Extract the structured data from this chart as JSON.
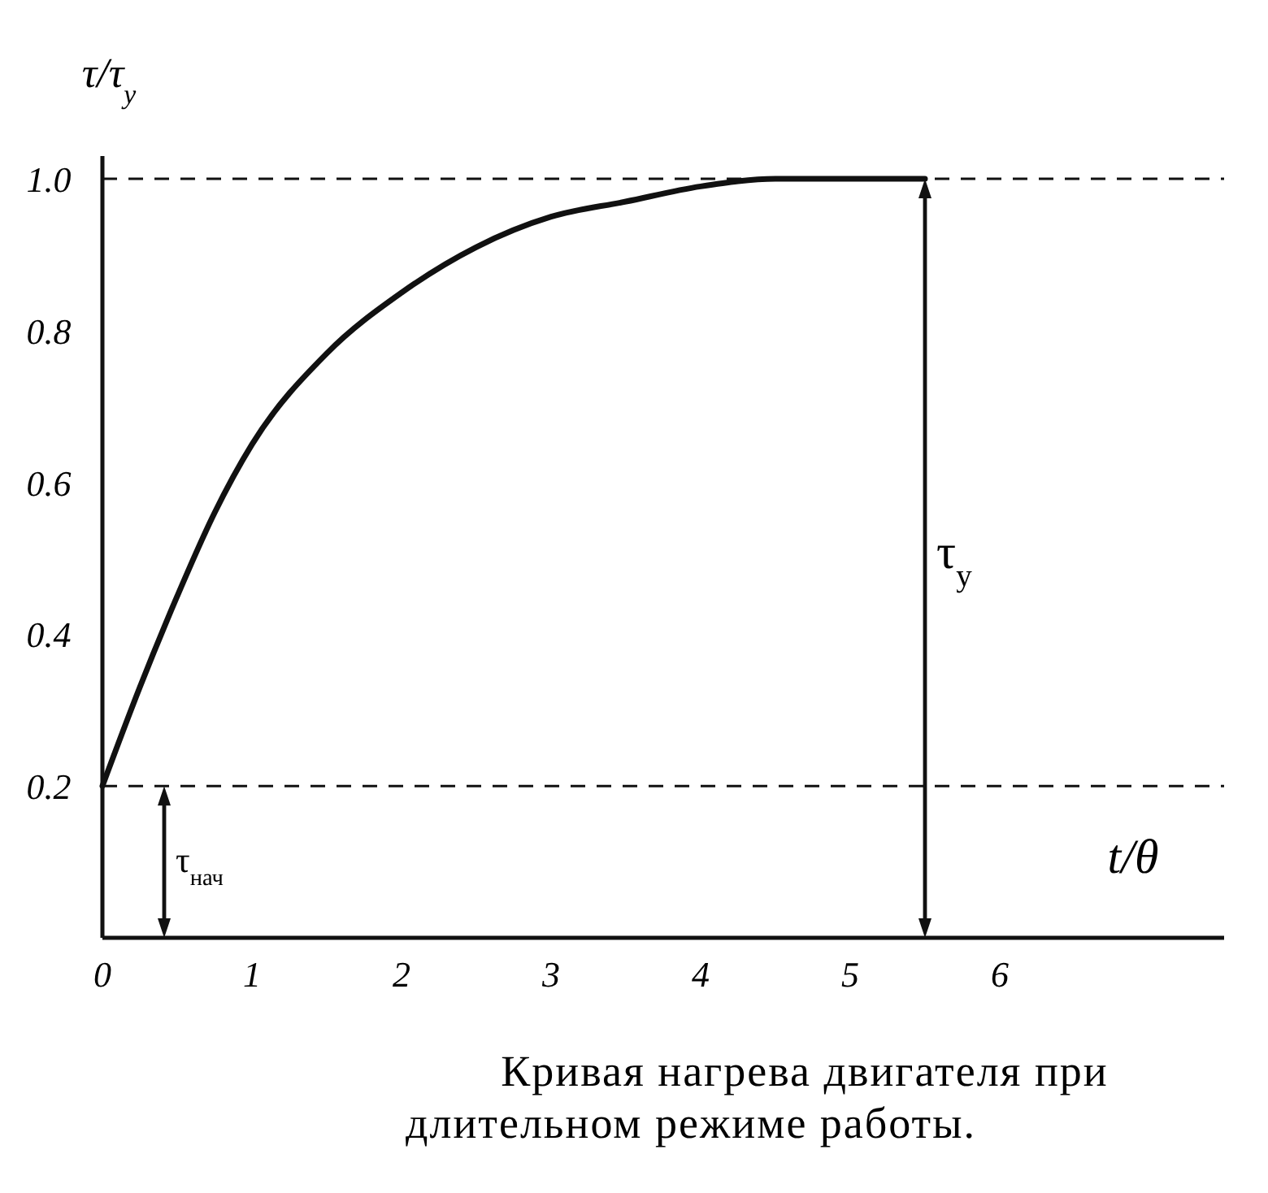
{
  "chart_data": {
    "type": "line",
    "title": "Кривая нагрева двигателя при длительном режиме работы.",
    "xlabel": "t/θ",
    "ylabel": "τ/τ$_{у}$",
    "x": [
      0,
      0.25,
      0.5,
      0.75,
      1,
      1.5,
      2,
      2.5,
      3,
      3.5,
      4,
      4.5,
      5,
      5.5
    ],
    "series": [
      {
        "color": "#111111",
        "values": [
          0.2,
          0.33,
          0.45,
          0.56,
          0.65,
          0.77,
          0.85,
          0.91,
          0.95,
          0.97,
          0.99,
          1.0,
          1.0,
          1.0
        ]
      }
    ],
    "xlim": [
      0,
      7.5
    ],
    "ylim": [
      0,
      1.03
    ],
    "xticks": [
      0,
      1,
      2,
      3,
      4,
      5,
      6
    ],
    "yticks": [
      {
        "value": 0.2,
        "label": "0.2"
      },
      {
        "value": 0.4,
        "label": "0.4"
      },
      {
        "value": 0.6,
        "label": "0.6"
      },
      {
        "value": 0.8,
        "label": "0.8"
      },
      {
        "value": 1,
        "label": "1.0"
      }
    ],
    "ref_lines": [
      {
        "axis": "y",
        "value": 1,
        "line_style": "dashed"
      },
      {
        "axis": "y",
        "value": 0.2,
        "line_style": "dashed"
      }
    ],
    "annotations": [
      "τ$_{у}$",
      "τ$_{нач}$"
    ],
    "grid": false,
    "legend": false,
    "marker": "none",
    "line_style": "solid"
  }
}
